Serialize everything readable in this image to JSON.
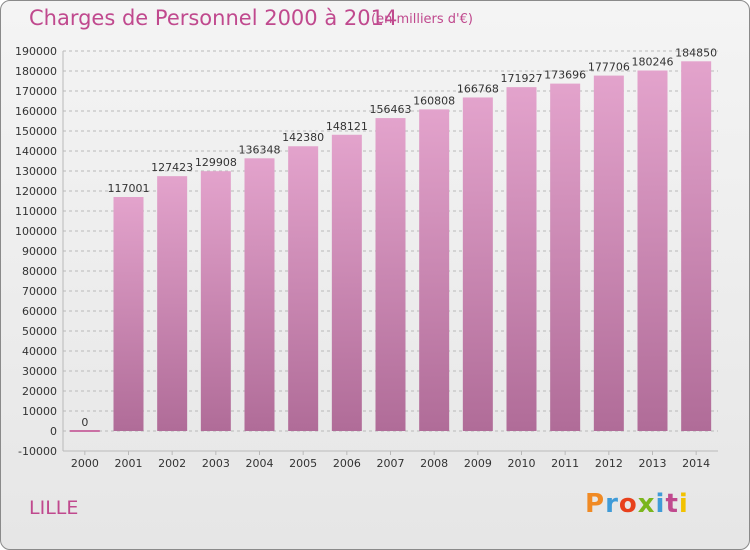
{
  "header": {
    "title": "Charges de Personnel 2000 à 2014",
    "subtitle": "(en milliers d'€)"
  },
  "footer": {
    "city": "LILLE",
    "logo_text": "Proxiti",
    "logo_colors": [
      "#f08a24",
      "#3f9bd8",
      "#e8401c",
      "#7bb61d",
      "#3f9bd8",
      "#c0498e",
      "#f2c200"
    ]
  },
  "chart_data": {
    "type": "bar",
    "title": "Charges de Personnel 2000 à 2014",
    "subtitle": "(en milliers d'€)",
    "categories": [
      "2000",
      "2001",
      "2002",
      "2003",
      "2004",
      "2005",
      "2006",
      "2007",
      "2008",
      "2009",
      "2010",
      "2011",
      "2012",
      "2013",
      "2014"
    ],
    "values": [
      0,
      117001,
      127423,
      129908,
      136348,
      142380,
      148121,
      156463,
      160808,
      166768,
      171927,
      173696,
      177706,
      180246,
      184850
    ],
    "data_labels": [
      "0",
      "117001",
      "127423",
      "129908",
      "136348",
      "142380",
      "148121",
      "156463",
      "160808",
      "166768",
      "171927",
      "173696",
      "177706",
      "180246",
      "184850"
    ],
    "ylim": [
      -10000,
      190000
    ],
    "yticks": [
      -10000,
      0,
      10000,
      20000,
      30000,
      40000,
      50000,
      60000,
      70000,
      80000,
      90000,
      100000,
      110000,
      120000,
      130000,
      140000,
      150000,
      160000,
      170000,
      180000,
      190000
    ],
    "grid": true,
    "xlabel": "",
    "ylabel": "",
    "colors": {
      "bar_light": "#e3a3cc",
      "bar_dark": "#b06c98",
      "zero_bar": "#c0498e",
      "grid": "#b9b9b9",
      "axis_text": "#333333",
      "accent": "#c0498e"
    }
  }
}
